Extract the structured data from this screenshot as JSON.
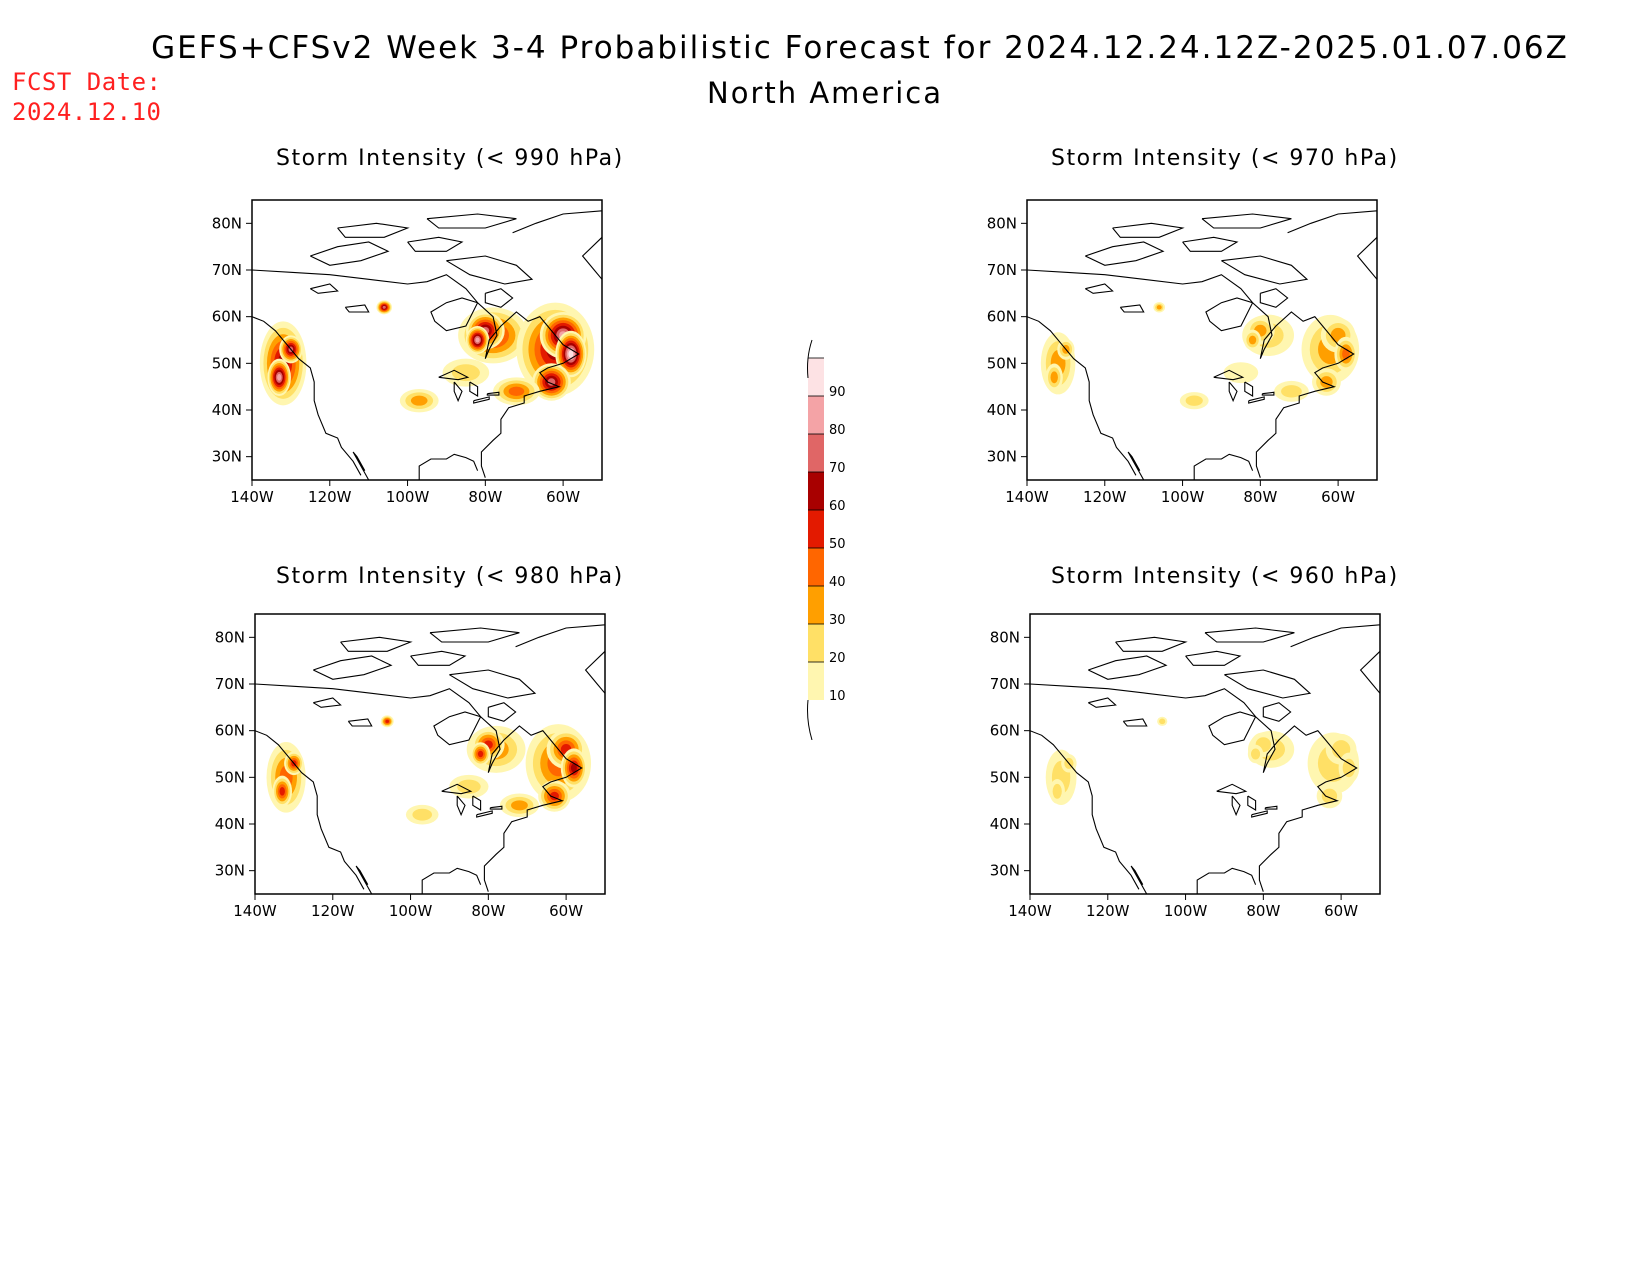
{
  "header": {
    "title": "GEFS+CFSv2 Week 3-4 Probabilistic Forecast for 2024.12.24.12Z-2025.01.07.06Z",
    "subtitle": "North America",
    "fcst_label": "FCST Date:",
    "fcst_value": "2024.12.10",
    "fcst_color": "#ff2020"
  },
  "axes": {
    "lat_ticks": [
      "80N",
      "70N",
      "60N",
      "50N",
      "40N",
      "30N"
    ],
    "lon_ticks": [
      "140W",
      "120W",
      "100W",
      "80W",
      "60W"
    ]
  },
  "panels": [
    {
      "id": "p990",
      "title": "Storm Intensity (< 990 hPa)",
      "threshold_hpa": 990,
      "intensity": 1.0
    },
    {
      "id": "p970",
      "title": "Storm Intensity (< 970 hPa)",
      "threshold_hpa": 970,
      "intensity": 0.35
    },
    {
      "id": "p980",
      "title": "Storm Intensity (< 980 hPa)",
      "threshold_hpa": 980,
      "intensity": 0.6
    },
    {
      "id": "p960",
      "title": "Storm Intensity (< 960 hPa)",
      "threshold_hpa": 960,
      "intensity": 0.15
    }
  ],
  "colorbar": {
    "labels": [
      "90",
      "80",
      "70",
      "60",
      "50",
      "40",
      "30",
      "20",
      "10"
    ],
    "colors": [
      "#fde2e4",
      "#f4a3a6",
      "#e06666",
      "#a80000",
      "#e31a00",
      "#ff6600",
      "#ff9f00",
      "#ffe066",
      "#fff6b0"
    ]
  }
}
